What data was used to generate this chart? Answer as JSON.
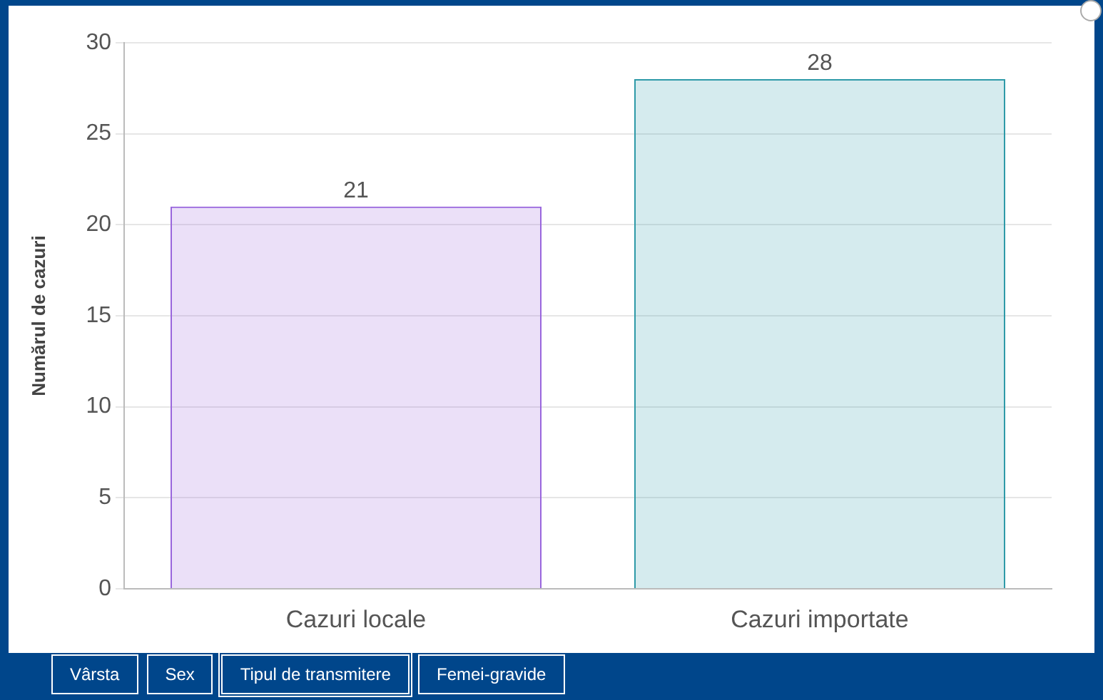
{
  "chart_data": {
    "type": "bar",
    "ylabel": "Numărul de cazuri",
    "categories": [
      "Cazuri locale",
      "Cazuri importate"
    ],
    "values": [
      21,
      28
    ],
    "colors": [
      "#9966dd",
      "#2e9aa8"
    ],
    "ylim": [
      0,
      30
    ],
    "yticks": [
      0,
      5,
      10,
      15,
      20,
      25,
      30
    ],
    "grid": "y",
    "legend": false,
    "data_labels": true,
    "annotations": [
      "Vârsta",
      "Sex",
      "Tipul de transmitere",
      "Femei-gravide"
    ]
  }
}
